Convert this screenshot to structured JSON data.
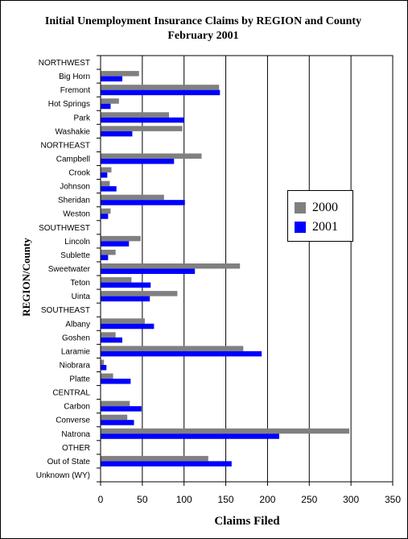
{
  "chart_data": {
    "type": "bar",
    "orientation": "horizontal",
    "title": "Initial Unemployment Insurance Claims by REGION and County",
    "subtitle": "February 2001",
    "xlabel": "Claims Filed",
    "ylabel": "REGION/County",
    "xlim": [
      0,
      350
    ],
    "xticks": [
      0,
      50,
      100,
      150,
      200,
      250,
      300,
      350
    ],
    "grid": true,
    "legend_position": "right",
    "categories": [
      "NORTHWEST",
      "Big Horn",
      "Fremont",
      "Hot Springs",
      "Park",
      "Washakie",
      "NORTHEAST",
      "Campbell",
      "Crook",
      "Johnson",
      "Sheridan",
      "Weston",
      "SOUTHWEST",
      "Lincoln",
      "Sublette",
      "Sweetwater",
      "Teton",
      "Uinta",
      "SOUTHEAST",
      "Albany",
      "Goshen",
      "Laramie",
      "Niobrara",
      "Platte",
      "CENTRAL",
      "Carbon",
      "Converse",
      "Natrona",
      "OTHER",
      "Out of State",
      "Unknown (WY)"
    ],
    "series": [
      {
        "name": "2000",
        "color": "#808080",
        "values": [
          null,
          46,
          142,
          22,
          82,
          98,
          null,
          121,
          13,
          11,
          76,
          12,
          null,
          48,
          18,
          167,
          37,
          92,
          null,
          53,
          18,
          171,
          4,
          15,
          null,
          35,
          32,
          298,
          null,
          129,
          null
        ]
      },
      {
        "name": "2001",
        "color": "#0000ff",
        "values": [
          null,
          26,
          143,
          12,
          100,
          38,
          null,
          88,
          8,
          19,
          101,
          9,
          null,
          34,
          9,
          113,
          60,
          59,
          null,
          64,
          26,
          193,
          7,
          36,
          null,
          49,
          40,
          214,
          null,
          157,
          null
        ]
      }
    ]
  }
}
